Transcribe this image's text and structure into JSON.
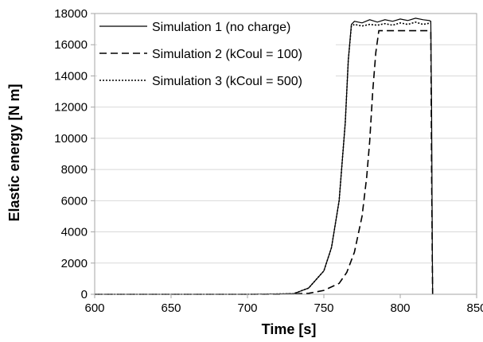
{
  "chart_data": {
    "type": "line",
    "title": "",
    "xlabel": "Time [s]",
    "ylabel": "Elastic energy [N m]",
    "xlim": [
      600,
      850
    ],
    "ylim": [
      0,
      18000
    ],
    "xticks": [
      600,
      650,
      700,
      750,
      800,
      850
    ],
    "yticks": [
      0,
      2000,
      4000,
      6000,
      8000,
      10000,
      12000,
      14000,
      16000,
      18000
    ],
    "grid": "horizontal",
    "legend_position": "top-left",
    "series": [
      {
        "name": "Simulation 1 (no charge)",
        "style": "solid",
        "x": [
          600,
          700,
          730,
          740,
          750,
          755,
          760,
          764,
          766,
          768,
          770,
          775,
          780,
          785,
          790,
          795,
          800,
          805,
          810,
          815,
          819,
          820,
          820.5,
          821,
          821.2
        ],
        "y": [
          0,
          0,
          30,
          400,
          1500,
          3000,
          6000,
          11000,
          15000,
          17300,
          17500,
          17400,
          17600,
          17450,
          17600,
          17500,
          17650,
          17550,
          17700,
          17600,
          17550,
          17500,
          12000,
          3000,
          0
        ]
      },
      {
        "name": "Simulation 2 (kCoul = 100)",
        "style": "dashed",
        "x": [
          600,
          720,
          740,
          750,
          760,
          765,
          770,
          775,
          778,
          780,
          782,
          784,
          786,
          790,
          800,
          810,
          818,
          820,
          820.5,
          821,
          821.2
        ],
        "y": [
          0,
          0,
          60,
          250,
          700,
          1400,
          2700,
          5000,
          7500,
          9800,
          13000,
          15500,
          16900,
          16900,
          16900,
          16900,
          16900,
          16850,
          8000,
          2000,
          0
        ]
      },
      {
        "name": "Simulation 3 (kCoul = 500)",
        "style": "dotted",
        "x": [
          600,
          700,
          730,
          740,
          750,
          755,
          760,
          764,
          766,
          768,
          770,
          775,
          780,
          785,
          790,
          795,
          800,
          805,
          810,
          815,
          820
        ],
        "y": [
          0,
          0,
          30,
          400,
          1500,
          3000,
          6000,
          11000,
          15000,
          17200,
          17300,
          17200,
          17300,
          17250,
          17350,
          17250,
          17400,
          17300,
          17450,
          17300,
          17400
        ]
      }
    ]
  }
}
